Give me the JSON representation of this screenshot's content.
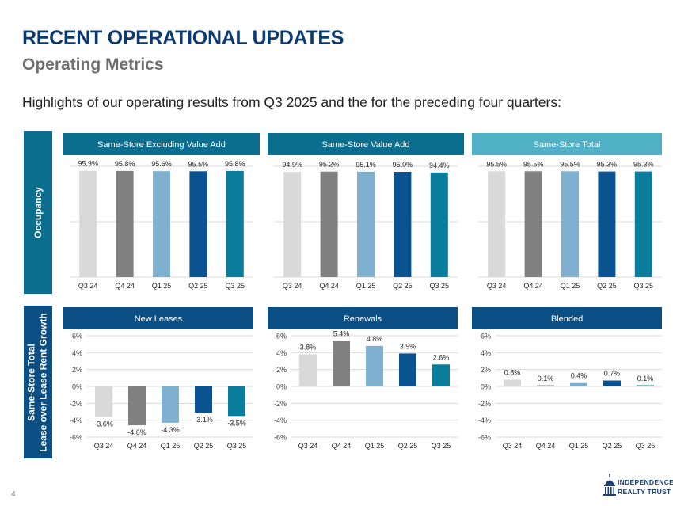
{
  "header": {
    "title": "RECENT OPERATIONAL UPDATES",
    "subtitle": "Operating Metrics",
    "lead": "Highlights of our operating results from Q3 2025 and the for the preceding four quarters:"
  },
  "side_labels": {
    "occupancy": "Occupancy",
    "lease_line1": "Same-Store Total",
    "lease_line2": "Lease over Lease Rent Growth"
  },
  "colors": {
    "bars": [
      "#d9d9d9",
      "#808080",
      "#7fb0d0",
      "#0a5390",
      "#0a7d9c"
    ],
    "header_dark": "#0b6e8f",
    "header_light": "#4fb0c6",
    "header_navy": "#0b4f84"
  },
  "chart_data": [
    {
      "type": "bar",
      "title": "Same-Store Excluding Value Add",
      "categories": [
        "Q3 24",
        "Q4 24",
        "Q1 25",
        "Q2 25",
        "Q3 25"
      ],
      "values": [
        95.9,
        95.8,
        95.6,
        95.5,
        95.8
      ],
      "value_labels": [
        "95.9%",
        "95.8%",
        "95.6%",
        "95.5%",
        "95.8%"
      ],
      "ylim": [
        0,
        100
      ],
      "grid": true,
      "axis_ticks": false
    },
    {
      "type": "bar",
      "title": "Same-Store Value Add",
      "categories": [
        "Q3 24",
        "Q4 24",
        "Q1 25",
        "Q2 25",
        "Q3 25"
      ],
      "values": [
        94.9,
        95.2,
        95.1,
        95.0,
        94.4
      ],
      "value_labels": [
        "94.9%",
        "95.2%",
        "95.1%",
        "95.0%",
        "94.4%"
      ],
      "ylim": [
        0,
        100
      ],
      "grid": true,
      "axis_ticks": false
    },
    {
      "type": "bar",
      "title": "Same-Store Total",
      "categories": [
        "Q3 24",
        "Q4 24",
        "Q1 25",
        "Q2 25",
        "Q3 25"
      ],
      "values": [
        95.5,
        95.5,
        95.5,
        95.3,
        95.3
      ],
      "value_labels": [
        "95.5%",
        "95.5%",
        "95.5%",
        "95.3%",
        "95.3%"
      ],
      "ylim": [
        0,
        100
      ],
      "grid": true,
      "axis_ticks": false
    },
    {
      "type": "bar",
      "title": "New Leases",
      "categories": [
        "Q3 24",
        "Q4 24",
        "Q1 25",
        "Q2 25",
        "Q3 25"
      ],
      "values": [
        -3.6,
        -4.6,
        -4.3,
        -3.1,
        -3.5
      ],
      "value_labels": [
        "-3.6%",
        "-4.6%",
        "-4.3%",
        "-3.1%",
        "-3.5%"
      ],
      "ylim": [
        -6,
        6
      ],
      "yticks": [
        6,
        4,
        2,
        0,
        -2,
        -4,
        -6
      ],
      "ytick_labels": [
        "6%",
        "4%",
        "2%",
        "0%",
        "-2%",
        "-4%",
        "-6%"
      ],
      "grid": true,
      "axis_ticks": true
    },
    {
      "type": "bar",
      "title": "Renewals",
      "categories": [
        "Q3 24",
        "Q4 24",
        "Q1 25",
        "Q2 25",
        "Q3 25"
      ],
      "values": [
        3.8,
        5.4,
        4.8,
        3.9,
        2.6
      ],
      "value_labels": [
        "3.8%",
        "5.4%",
        "4.8%",
        "3.9%",
        "2.6%"
      ],
      "ylim": [
        -6,
        6
      ],
      "yticks": [
        6,
        4,
        2,
        0,
        -2,
        -4,
        -6
      ],
      "ytick_labels": [
        "6%",
        "4%",
        "2%",
        "0%",
        "-2%",
        "-4%",
        "-6%"
      ],
      "grid": true,
      "axis_ticks": true
    },
    {
      "type": "bar",
      "title": "Blended",
      "categories": [
        "Q3 24",
        "Q4 24",
        "Q1 25",
        "Q2 25",
        "Q3 25"
      ],
      "values": [
        0.8,
        0.1,
        0.4,
        0.7,
        0.1
      ],
      "value_labels": [
        "0.8%",
        "0.1%",
        "0.4%",
        "0.7%",
        "0.1%"
      ],
      "ylim": [
        -6,
        6
      ],
      "yticks": [
        6,
        4,
        2,
        0,
        -2,
        -4,
        -6
      ],
      "ytick_labels": [
        "6%",
        "4%",
        "2%",
        "0%",
        "-2%",
        "-4%",
        "-6%"
      ],
      "grid": true,
      "axis_ticks": true
    }
  ],
  "footer": {
    "page_number": "4",
    "logo_line1": "INDEPENDENCE",
    "logo_line2": "REALTY TRUST",
    "logo_icon": "capitol-dome-icon"
  }
}
